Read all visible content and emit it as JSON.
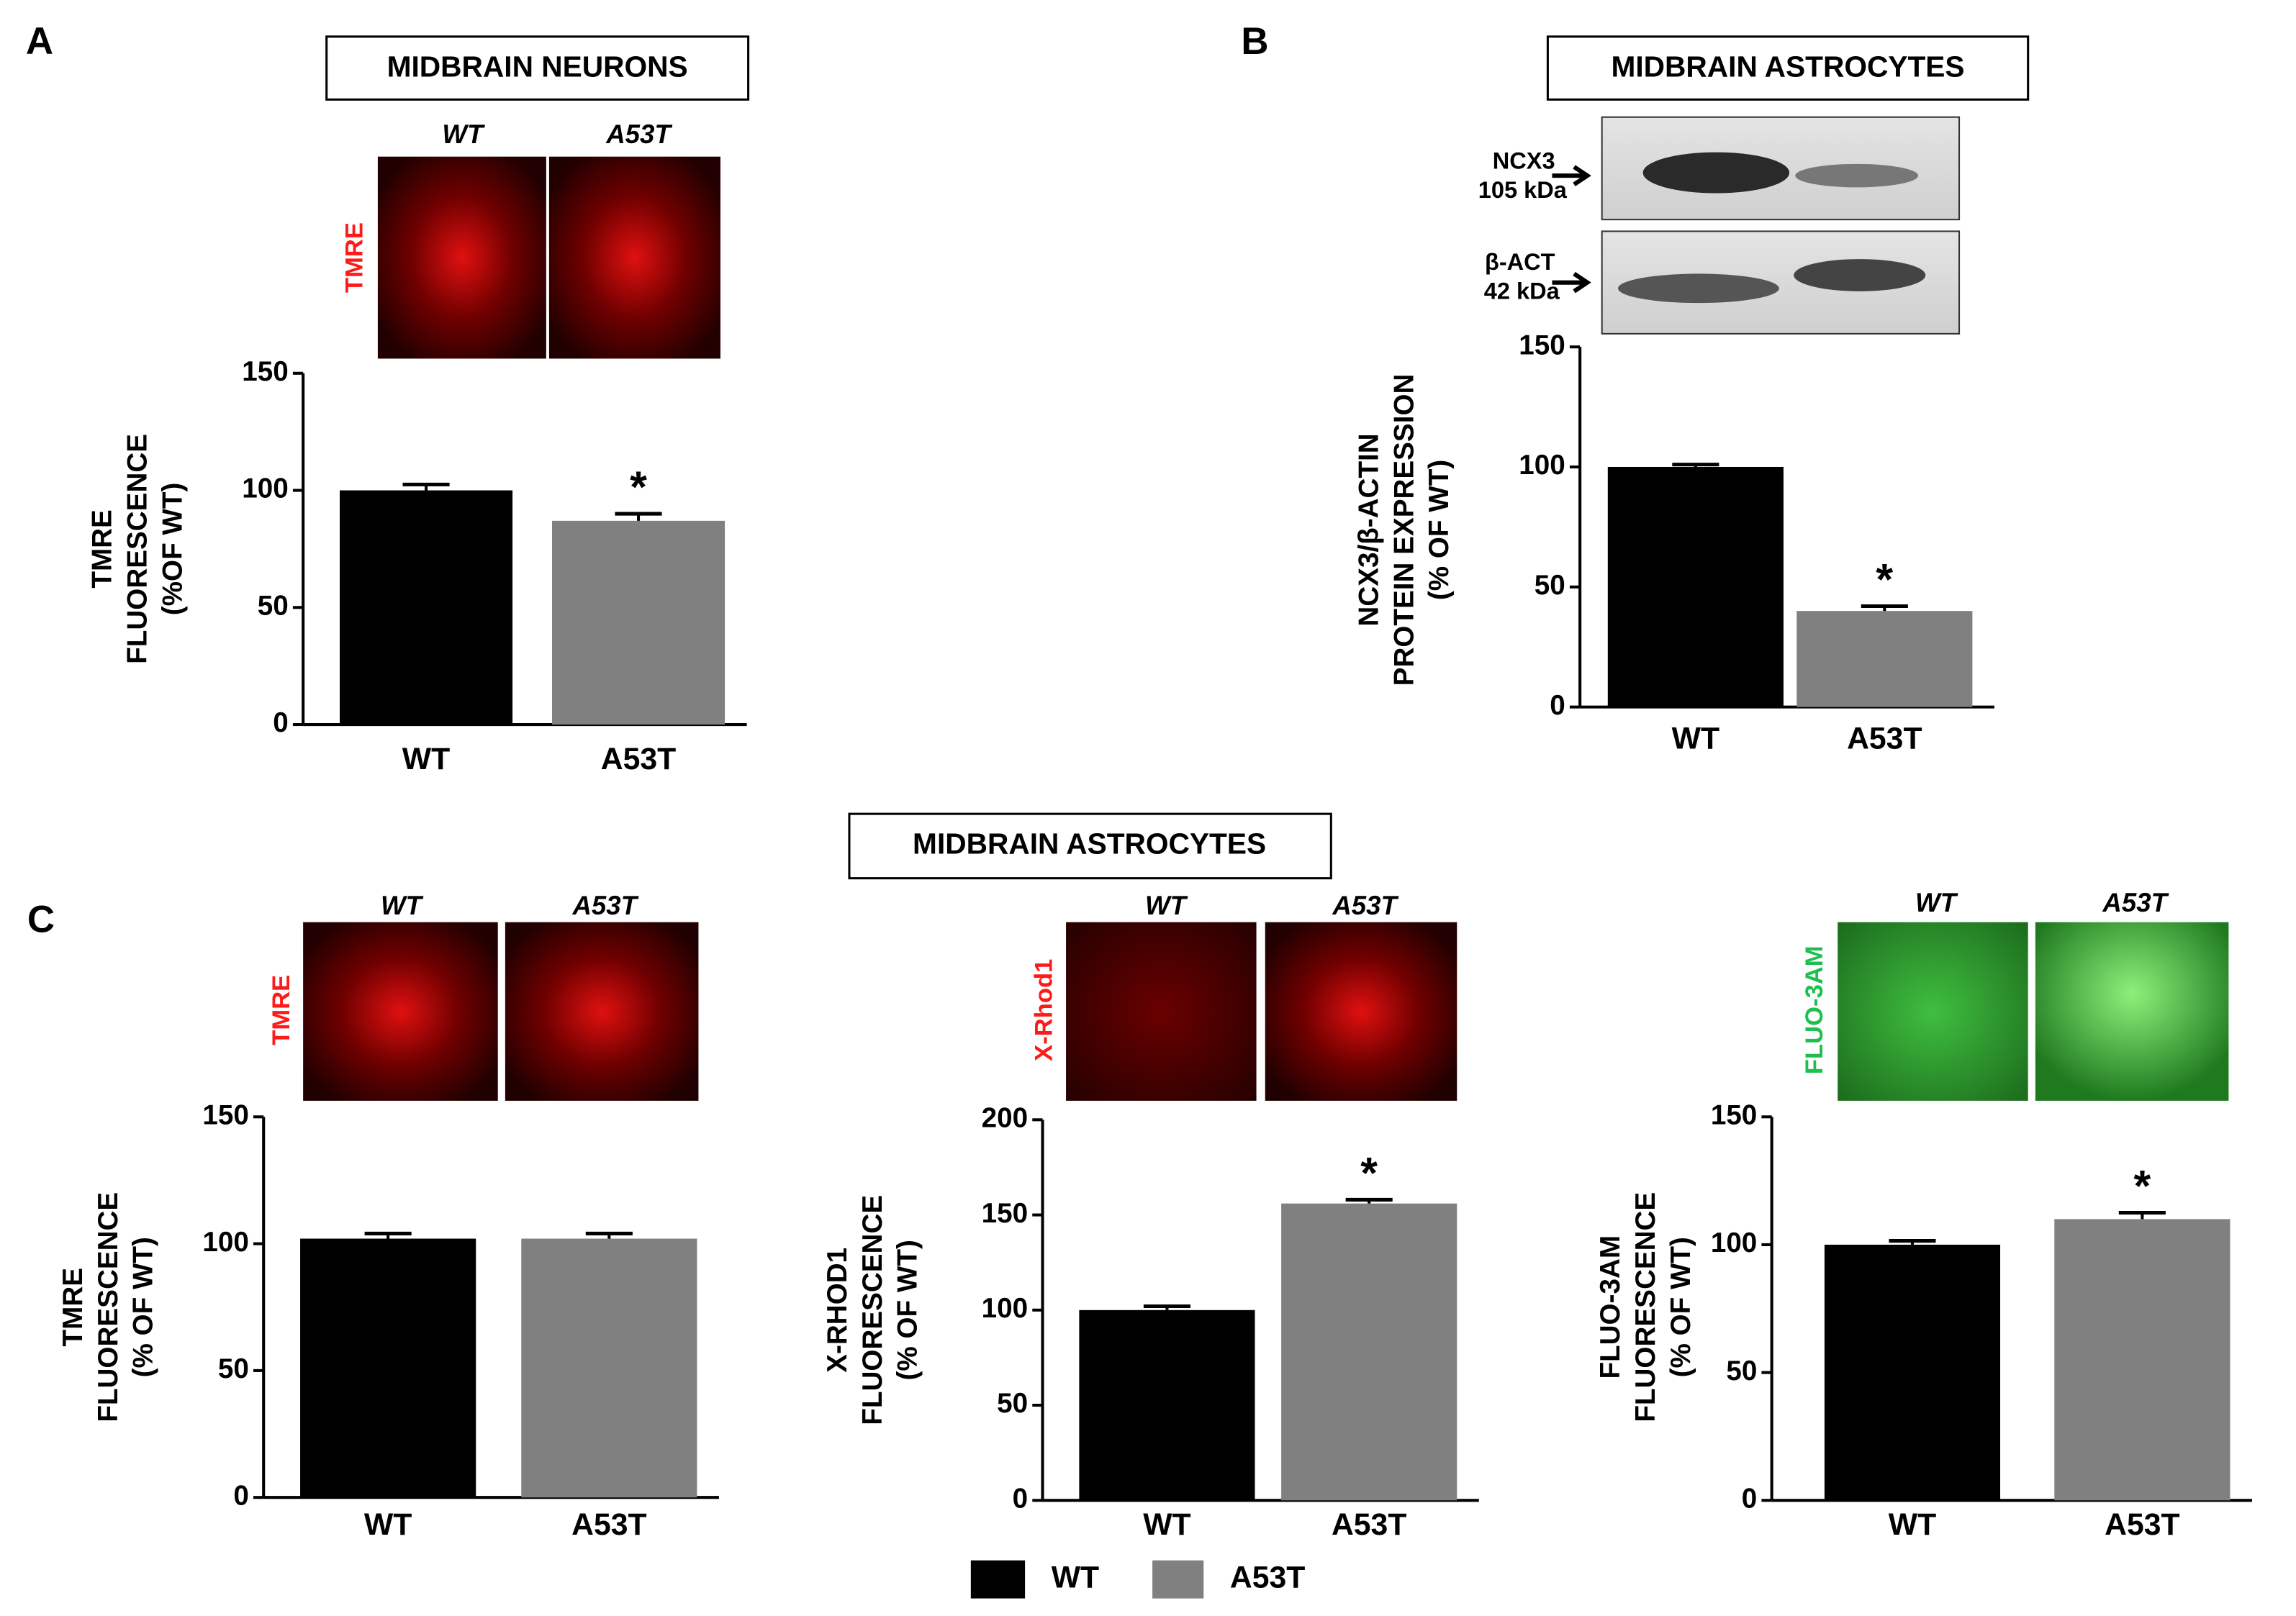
{
  "panel_labels": [
    "A",
    "B",
    "C"
  ],
  "headers": [
    "MIDBRAIN NEURONS",
    "MIDBRAIN ASTROCYTES",
    "MIDBRAIN ASTROCYTES"
  ],
  "images": [
    {
      "stain": "TMRE",
      "columns": [
        "WT",
        "A53T"
      ]
    },
    {
      "stain": "TMRE",
      "columns": [
        "WT",
        "A53T"
      ]
    },
    {
      "stain": "X-Rhod1",
      "columns": [
        "WT",
        "A53T"
      ]
    },
    {
      "stain": "FLUO-3AM",
      "columns": [
        "WT",
        "A53T"
      ]
    }
  ],
  "blot": {
    "bands": [
      {
        "name": "NCX3",
        "size": "105 kDa"
      },
      {
        "name": "β-ACT",
        "size": "42 kDa"
      }
    ]
  },
  "legend": {
    "labels": [
      "WT",
      "A53T"
    ],
    "colors": [
      "#000000",
      "#808080"
    ]
  },
  "chart_data": [
    {
      "type": "bar",
      "categories": [
        "WT",
        "A53T"
      ],
      "values": [
        100,
        87
      ],
      "errors": [
        2.5,
        3
      ],
      "colors": [
        "#000000",
        "#808080"
      ],
      "significance": [
        null,
        "*"
      ],
      "ylim": [
        0,
        150
      ],
      "yticks": [
        0,
        50,
        100,
        150
      ],
      "ylabel": [
        "TMRE",
        "FLUORESCENCE",
        "(%OF WT)"
      ]
    },
    {
      "type": "bar",
      "categories": [
        "WT",
        "A53T"
      ],
      "values": [
        100,
        40
      ],
      "errors": [
        1,
        2
      ],
      "colors": [
        "#000000",
        "#808080"
      ],
      "significance": [
        null,
        "*"
      ],
      "ylim": [
        0,
        150
      ],
      "yticks": [
        0,
        50,
        100,
        150
      ],
      "ylabel": [
        "NCX3/β-ACTIN",
        "PROTEIN EXPRESSION",
        "(% OF WT)"
      ]
    },
    {
      "type": "bar",
      "categories": [
        "WT",
        "A53T"
      ],
      "values": [
        102,
        102
      ],
      "errors": [
        2,
        2
      ],
      "colors": [
        "#000000",
        "#808080"
      ],
      "significance": [
        null,
        null
      ],
      "ylim": [
        0,
        150
      ],
      "yticks": [
        0,
        50,
        100,
        150
      ],
      "ylabel": [
        "TMRE",
        "FLUORESCENCE",
        "(% OF WT)"
      ]
    },
    {
      "type": "bar",
      "categories": [
        "WT",
        "A53T"
      ],
      "values": [
        100,
        156
      ],
      "errors": [
        2,
        2
      ],
      "colors": [
        "#000000",
        "#808080"
      ],
      "significance": [
        null,
        "*"
      ],
      "ylim": [
        0,
        200
      ],
      "yticks": [
        0,
        50,
        100,
        150,
        200
      ],
      "ylabel": [
        "X-RHOD1",
        "FLUORESCENCE",
        "(% OF WT)"
      ]
    },
    {
      "type": "bar",
      "categories": [
        "WT",
        "A53T"
      ],
      "values": [
        100,
        110
      ],
      "errors": [
        1.5,
        2.5
      ],
      "colors": [
        "#000000",
        "#808080"
      ],
      "significance": [
        null,
        "*"
      ],
      "ylim": [
        0,
        150
      ],
      "yticks": [
        0,
        50,
        100,
        150
      ],
      "ylabel": [
        "FLUO-3AM",
        "FLUORESCENCE",
        "(% OF WT)"
      ]
    }
  ]
}
